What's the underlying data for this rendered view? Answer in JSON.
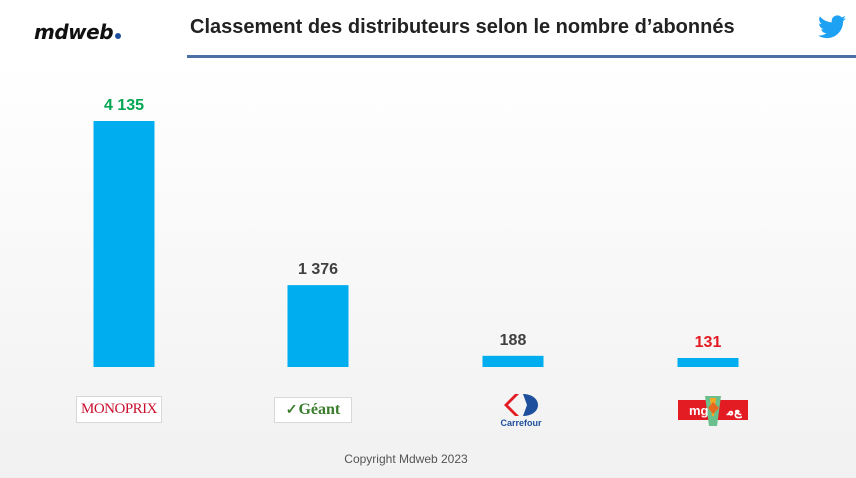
{
  "header": {
    "brand": "mdweb",
    "brand_dot_color": "#1e4f9c",
    "title": "Classement des distributeurs selon le nombre d’abonnés",
    "rule_color": "#4a6fa5",
    "twitter_icon": "twitter-bird-icon",
    "twitter_color": "#1da1f2"
  },
  "chart_data": {
    "type": "bar",
    "title": "Classement des distributeurs selon le nombre d’abonnés",
    "categories": [
      "Monoprix",
      "Géant",
      "Carrefour",
      "MG"
    ],
    "values": [
      4135,
      1376,
      188,
      131
    ],
    "data_labels": [
      "4 135",
      "1 376",
      "188",
      "131"
    ],
    "label_colors": [
      "#00a651",
      "#404040",
      "#404040",
      "#e31b23"
    ],
    "bar_color": "#00aeef",
    "ylim": [
      0,
      4135
    ],
    "grid": false,
    "legend": "none"
  },
  "logos": {
    "monoprix": "MONOPRIX",
    "geant": "Géant",
    "carrefour": "Carrefour",
    "mg": "mg"
  },
  "footer": {
    "copyright": "Copyright Mdweb 2023"
  }
}
